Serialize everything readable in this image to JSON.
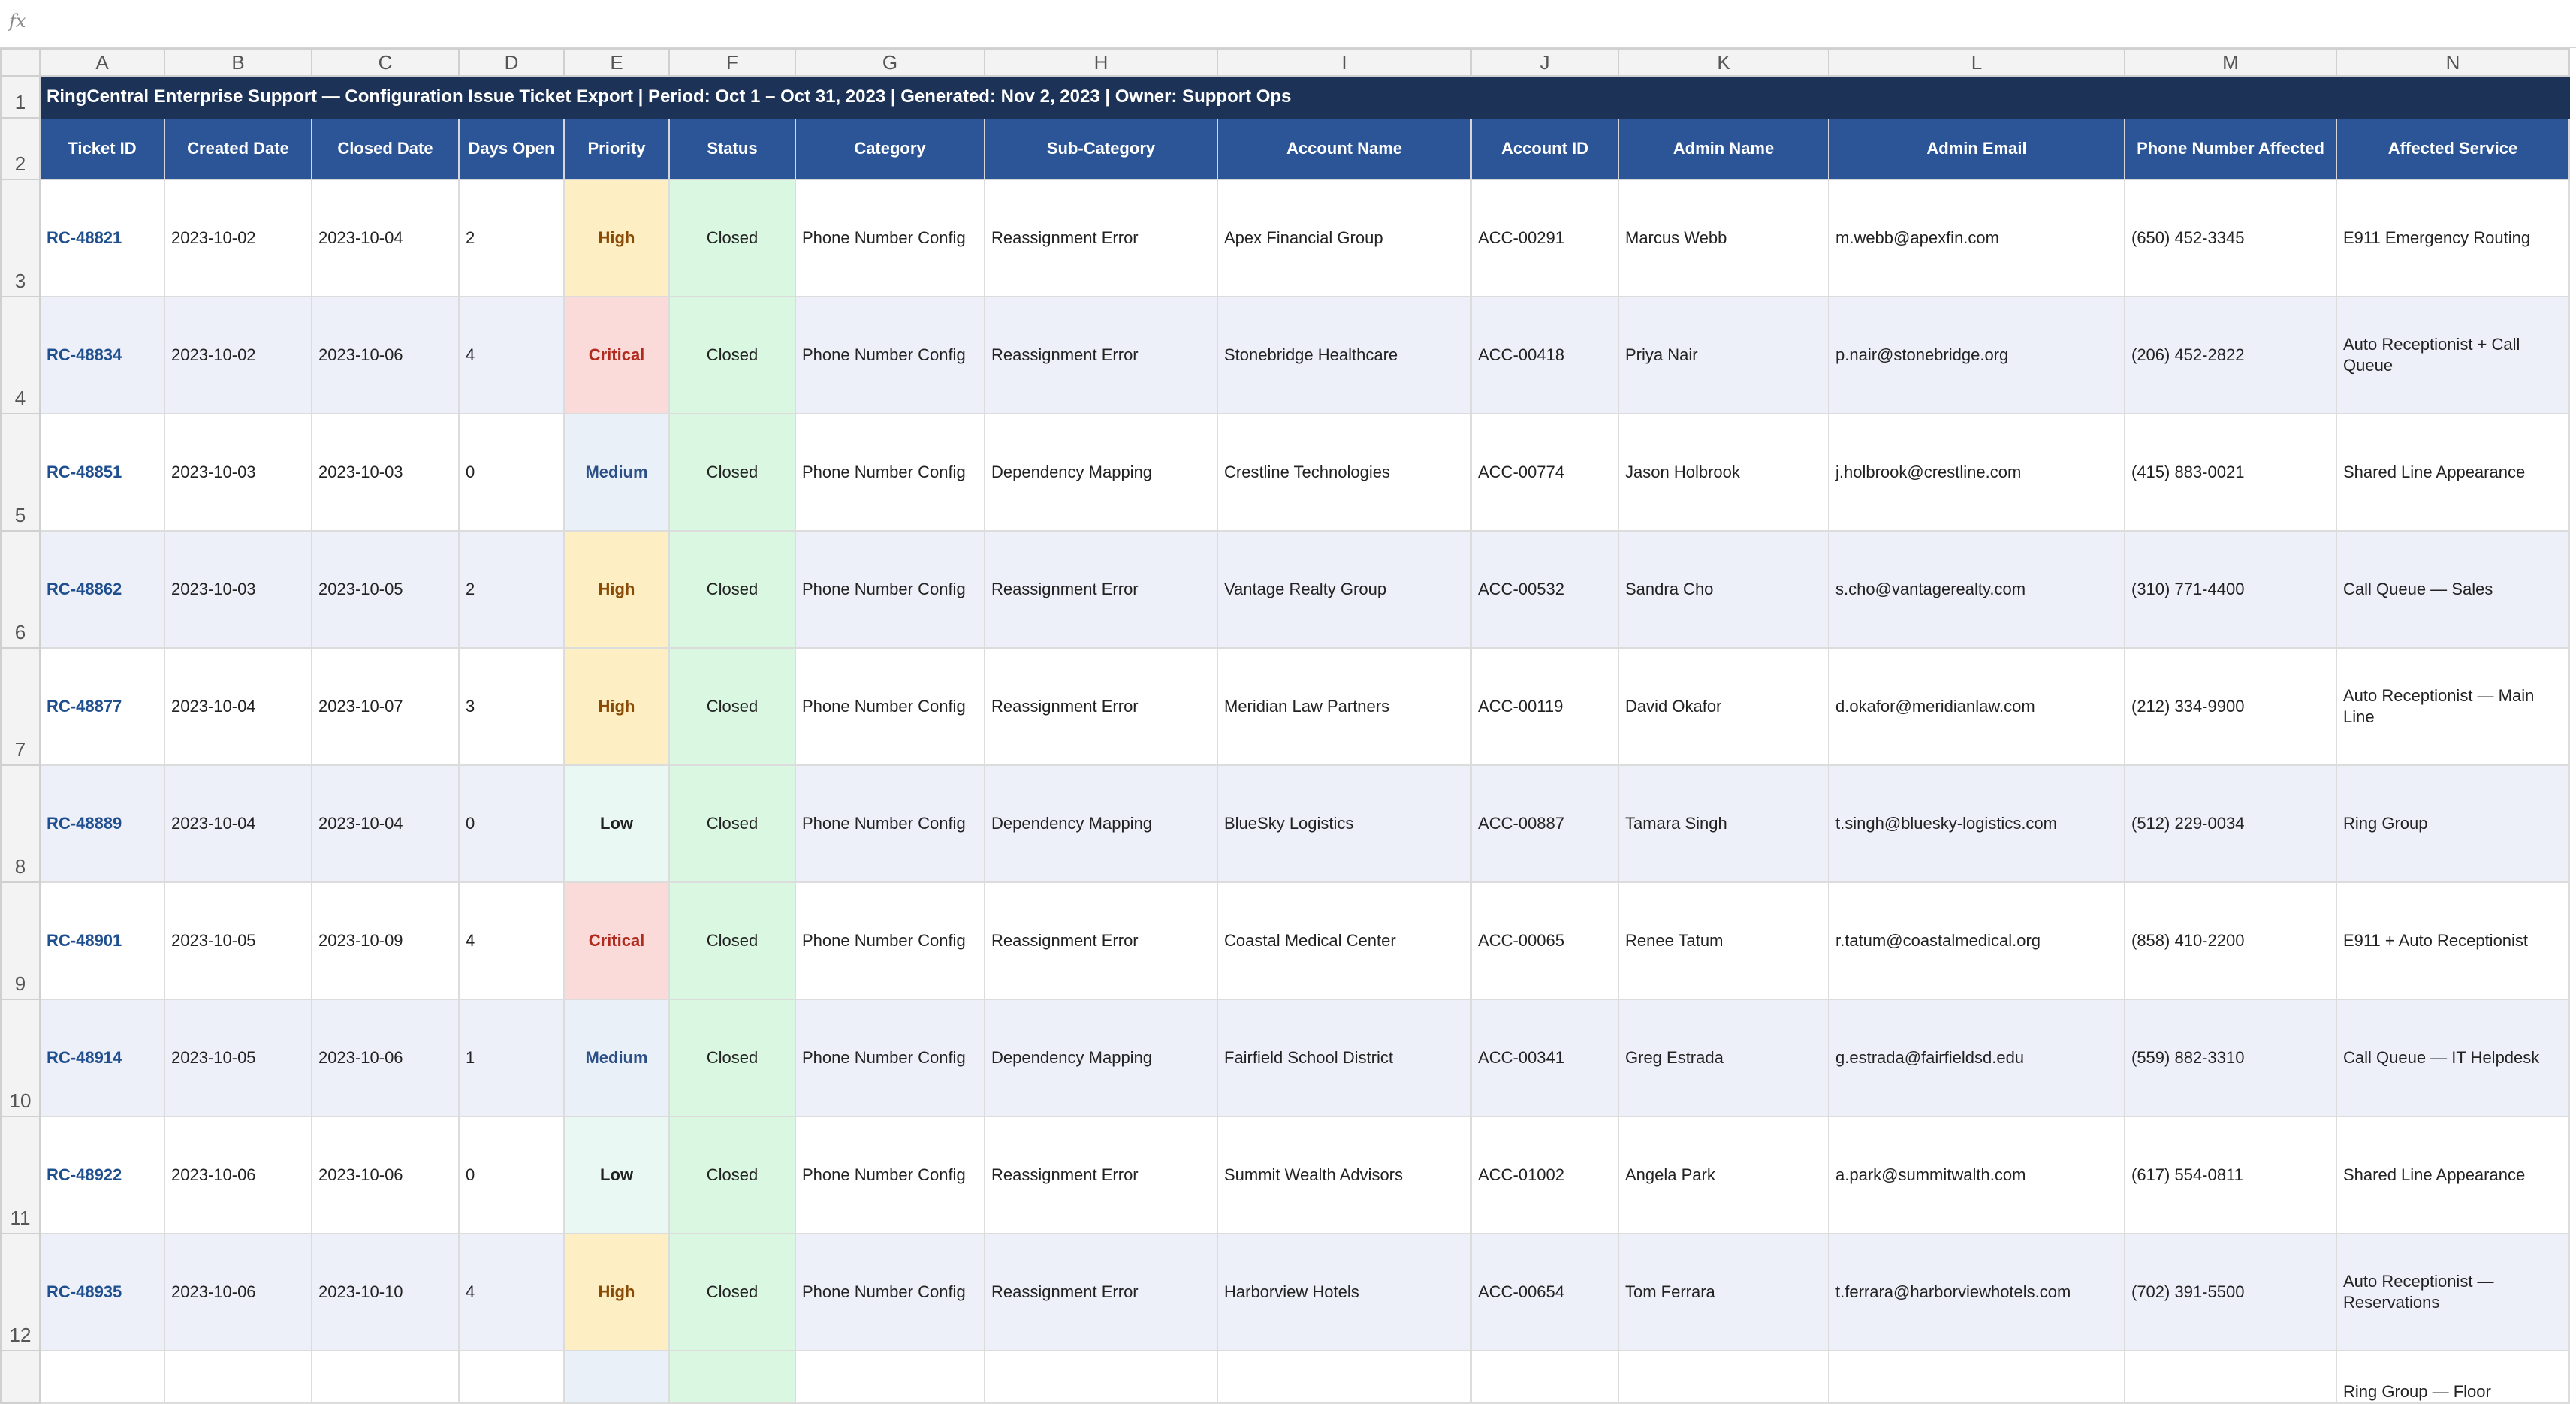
{
  "formula_bar": {
    "icon": "fx-icon",
    "fx_label": "fx"
  },
  "column_letters": [
    "A",
    "B",
    "C",
    "D",
    "E",
    "F",
    "G",
    "H",
    "I",
    "J",
    "K",
    "L",
    "M",
    "N"
  ],
  "title_row": {
    "row_number": "1",
    "text": "RingCentral Enterprise Support — Configuration Issue Ticket Export  |  Period: Oct 1 – Oct 31, 2023  |  Generated: Nov 2, 2023  |  Owner: Support Ops"
  },
  "header_row": {
    "row_number": "2",
    "headers": [
      "Ticket ID",
      "Created Date",
      "Closed Date",
      "Days Open",
      "Priority",
      "Status",
      "Category",
      "Sub-Category",
      "Account Name",
      "Account ID",
      "Admin Name",
      "Admin Email",
      "Phone Number Affected",
      "Affected Service"
    ]
  },
  "rows": [
    {
      "row_number": "3",
      "ticket_id": "RC-48821",
      "created": "2023-10-02",
      "closed": "2023-10-04",
      "days_open": "2",
      "priority": "High",
      "status": "Closed",
      "category": "Phone Number Config",
      "subcategory": "Reassignment Error",
      "account_name": "Apex Financial Group",
      "account_id": "ACC-00291",
      "admin_name": "Marcus Webb",
      "admin_email": "m.webb@apexfin.com",
      "phone": "(650) 452-3345",
      "service": "E911 Emergency Routing"
    },
    {
      "row_number": "4",
      "ticket_id": "RC-48834",
      "created": "2023-10-02",
      "closed": "2023-10-06",
      "days_open": "4",
      "priority": "Critical",
      "status": "Closed",
      "category": "Phone Number Config",
      "subcategory": "Reassignment Error",
      "account_name": "Stonebridge Healthcare",
      "account_id": "ACC-00418",
      "admin_name": "Priya Nair",
      "admin_email": "p.nair@stonebridge.org",
      "phone": "(206) 452-2822",
      "service": "Auto Receptionist + Call Queue"
    },
    {
      "row_number": "5",
      "ticket_id": "RC-48851",
      "created": "2023-10-03",
      "closed": "2023-10-03",
      "days_open": "0",
      "priority": "Medium",
      "status": "Closed",
      "category": "Phone Number Config",
      "subcategory": "Dependency Mapping",
      "account_name": "Crestline Technologies",
      "account_id": "ACC-00774",
      "admin_name": "Jason Holbrook",
      "admin_email": "j.holbrook@crestline.com",
      "phone": "(415) 883-0021",
      "service": "Shared Line Appearance"
    },
    {
      "row_number": "6",
      "ticket_id": "RC-48862",
      "created": "2023-10-03",
      "closed": "2023-10-05",
      "days_open": "2",
      "priority": "High",
      "status": "Closed",
      "category": "Phone Number Config",
      "subcategory": "Reassignment Error",
      "account_name": "Vantage Realty Group",
      "account_id": "ACC-00532",
      "admin_name": "Sandra Cho",
      "admin_email": "s.cho@vantagerealty.com",
      "phone": "(310) 771-4400",
      "service": "Call Queue — Sales"
    },
    {
      "row_number": "7",
      "ticket_id": "RC-48877",
      "created": "2023-10-04",
      "closed": "2023-10-07",
      "days_open": "3",
      "priority": "High",
      "status": "Closed",
      "category": "Phone Number Config",
      "subcategory": "Reassignment Error",
      "account_name": "Meridian Law Partners",
      "account_id": "ACC-00119",
      "admin_name": "David Okafor",
      "admin_email": "d.okafor@meridianlaw.com",
      "phone": "(212) 334-9900",
      "service": "Auto Receptionist — Main Line"
    },
    {
      "row_number": "8",
      "ticket_id": "RC-48889",
      "created": "2023-10-04",
      "closed": "2023-10-04",
      "days_open": "0",
      "priority": "Low",
      "status": "Closed",
      "category": "Phone Number Config",
      "subcategory": "Dependency Mapping",
      "account_name": "BlueSky Logistics",
      "account_id": "ACC-00887",
      "admin_name": "Tamara Singh",
      "admin_email": "t.singh@bluesky-logistics.com",
      "phone": "(512) 229-0034",
      "service": "Ring Group"
    },
    {
      "row_number": "9",
      "ticket_id": "RC-48901",
      "created": "2023-10-05",
      "closed": "2023-10-09",
      "days_open": "4",
      "priority": "Critical",
      "status": "Closed",
      "category": "Phone Number Config",
      "subcategory": "Reassignment Error",
      "account_name": "Coastal Medical Center",
      "account_id": "ACC-00065",
      "admin_name": "Renee Tatum",
      "admin_email": "r.tatum@coastalmedical.org",
      "phone": "(858) 410-2200",
      "service": "E911 + Auto Receptionist"
    },
    {
      "row_number": "10",
      "ticket_id": "RC-48914",
      "created": "2023-10-05",
      "closed": "2023-10-06",
      "days_open": "1",
      "priority": "Medium",
      "status": "Closed",
      "category": "Phone Number Config",
      "subcategory": "Dependency Mapping",
      "account_name": "Fairfield School District",
      "account_id": "ACC-00341",
      "admin_name": "Greg Estrada",
      "admin_email": "g.estrada@fairfieldsd.edu",
      "phone": "(559) 882-3310",
      "service": "Call Queue — IT Helpdesk"
    },
    {
      "row_number": "11",
      "ticket_id": "RC-48922",
      "created": "2023-10-06",
      "closed": "2023-10-06",
      "days_open": "0",
      "priority": "Low",
      "status": "Closed",
      "category": "Phone Number Config",
      "subcategory": "Reassignment Error",
      "account_name": "Summit Wealth Advisors",
      "account_id": "ACC-01002",
      "admin_name": "Angela Park",
      "admin_email": "a.park@summitwalth.com",
      "phone": "(617) 554-0811",
      "service": "Shared Line Appearance"
    },
    {
      "row_number": "12",
      "ticket_id": "RC-48935",
      "created": "2023-10-06",
      "closed": "2023-10-10",
      "days_open": "4",
      "priority": "High",
      "status": "Closed",
      "category": "Phone Number Config",
      "subcategory": "Reassignment Error",
      "account_name": "Harborview Hotels",
      "account_id": "ACC-00654",
      "admin_name": "Tom Ferrara",
      "admin_email": "t.ferrara@harborviewhotels.com",
      "phone": "(702) 391-5500",
      "service": "Auto Receptionist — Reservations"
    },
    {
      "row_number": "",
      "ticket_id": "",
      "created": "",
      "closed": "",
      "days_open": "",
      "priority": "",
      "status": "",
      "category": "",
      "subcategory": "",
      "account_name": "",
      "account_id": "",
      "admin_name": "",
      "admin_email": "",
      "phone": "",
      "service": "Ring Group — Floor"
    }
  ]
}
